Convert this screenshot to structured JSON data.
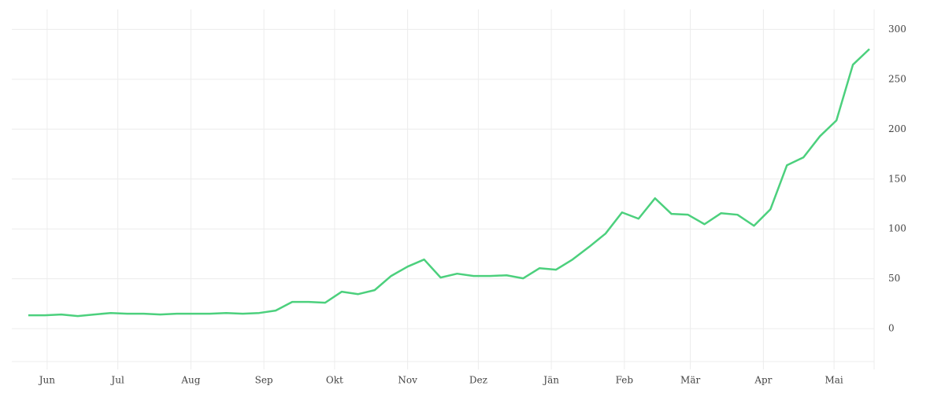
{
  "chart_data": {
    "type": "line",
    "x": [
      -8,
      -1,
      6,
      13,
      20,
      27,
      34,
      41,
      48,
      55,
      62,
      69,
      76,
      83,
      90,
      97,
      104,
      111,
      118,
      125,
      132,
      139,
      146,
      153,
      160,
      167,
      174,
      181,
      188,
      195,
      202,
      209,
      216,
      223,
      230,
      237,
      244,
      251,
      258,
      265,
      272,
      279,
      286,
      293,
      300,
      307,
      314,
      321,
      328,
      335,
      342,
      349
    ],
    "series": [
      {
        "color": "#4cd07d",
        "values": [
          13.4,
          13.4,
          14.2,
          12.6,
          14.2,
          15.7,
          15,
          15,
          14.2,
          15,
          15,
          15,
          15.7,
          15,
          15.7,
          18.1,
          26.8,
          26.8,
          26,
          37,
          34.6,
          38.6,
          52.8,
          62.2,
          69.3,
          51.2,
          55.1,
          52.8,
          52.8,
          53.5,
          50.4,
          60.6,
          59.1,
          69.3,
          81.9,
          95.3,
          116.5,
          110.2,
          130.7,
          115,
          114.2,
          104.7,
          115.7,
          114.2,
          103.1,
          119.7,
          163.8,
          171.7,
          192.9,
          208.7,
          264.6,
          280.3
        ]
      }
    ],
    "xlim": [
      -15,
      351
    ],
    "xticks": [
      {
        "value": 0,
        "label": "Jun"
      },
      {
        "value": 30,
        "label": "Jul"
      },
      {
        "value": 61,
        "label": "Aug"
      },
      {
        "value": 92,
        "label": "Sep"
      },
      {
        "value": 122,
        "label": "Okt"
      },
      {
        "value": 153,
        "label": "Nov"
      },
      {
        "value": 183,
        "label": "Dez"
      },
      {
        "value": 214,
        "label": "Jän"
      },
      {
        "value": 245,
        "label": "Feb"
      },
      {
        "value": 273,
        "label": "Mär"
      },
      {
        "value": 304,
        "label": "Apr"
      },
      {
        "value": 334,
        "label": "Mai"
      }
    ],
    "ylim": [
      -33,
      320
    ],
    "yticks": [
      0,
      50,
      100,
      150,
      200,
      250,
      300
    ],
    "grid": true
  }
}
